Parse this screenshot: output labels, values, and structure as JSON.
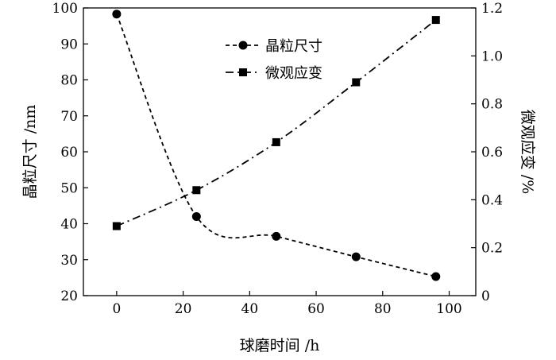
{
  "chart_data": {
    "type": "line",
    "xlabel": "球磨时间 /h",
    "ylabel_left": "晶粒尺寸 /nm",
    "ylabel_right": "微观应变 /%",
    "xlim": [
      -10,
      108
    ],
    "ylim_left": [
      20,
      100
    ],
    "ylim_right": [
      0,
      1.2
    ],
    "x_ticks": [
      "0",
      "20",
      "40",
      "60",
      "80",
      "100"
    ],
    "y_ticks_left": [
      "20",
      "30",
      "40",
      "50",
      "60",
      "70",
      "80",
      "90",
      "100"
    ],
    "y_ticks_right": [
      "0",
      "0.2",
      "0.4",
      "0.6",
      "0.8",
      "1.0",
      "1.2"
    ],
    "legend_position": "top-center",
    "series": [
      {
        "name": "晶粒尺寸",
        "axis": "left",
        "marker": "circle",
        "line_style": "dashed",
        "x": [
          0,
          24,
          48,
          72,
          96
        ],
        "y": [
          98.3,
          42.0,
          36.5,
          30.8,
          25.3
        ]
      },
      {
        "name": "微观应变",
        "axis": "right",
        "marker": "square",
        "line_style": "dash-dot",
        "x": [
          0,
          24,
          48,
          72,
          96
        ],
        "y": [
          0.29,
          0.44,
          0.64,
          0.89,
          1.15
        ]
      }
    ]
  }
}
